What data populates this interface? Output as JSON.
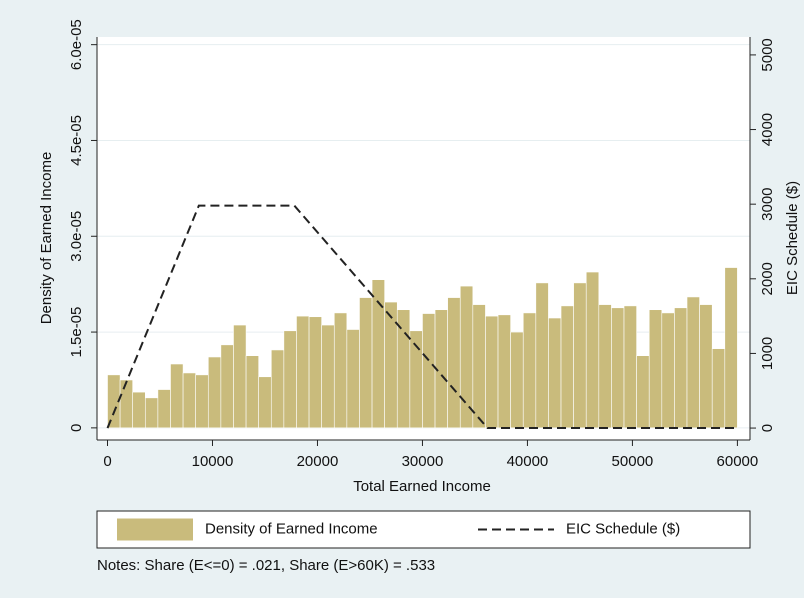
{
  "chart_data": {
    "type": "histogram",
    "x_label": "Total Earned Income",
    "y_label": "Density of Earned Income",
    "y2_label": "EIC Schedule ($)",
    "notes": "Notes: Share (E<=0) = .021, Share (E>60K) = .533",
    "xlim": [
      -1000,
      61200
    ],
    "xticks": [
      0,
      10000,
      20000,
      30000,
      40000,
      50000,
      60000
    ],
    "ylim": [
      -1.9e-06,
      6.12e-05
    ],
    "yticks": [
      0,
      {
        "value": 1.5e-05,
        "label": "1.5e-05"
      },
      {
        "value": 3e-05,
        "label": "3.0e-05"
      },
      {
        "value": 4.5e-05,
        "label": "4.5e-05"
      },
      {
        "value": 6e-05,
        "label": "6.0e-05"
      }
    ],
    "y2lim": [
      -160,
      5240
    ],
    "y2ticks": [
      0,
      1000,
      2000,
      3000,
      4000,
      5000
    ],
    "grid": true,
    "series": [
      {
        "name": "Density of Earned Income",
        "color": "#c9bb7c",
        "bins": [
          0,
          1200,
          2400,
          3600,
          4800,
          6000,
          7200,
          8400,
          9600,
          10800,
          12000,
          13200,
          14400,
          15600,
          16800,
          18000,
          19200,
          20400,
          21600,
          22800,
          24000,
          25200,
          26400,
          27600,
          28800,
          30000,
          31200,
          32400,
          33600,
          34800,
          36000,
          37200,
          38400,
          39600,
          40800,
          42000,
          43200,
          44400,
          45600,
          46800,
          48000,
          49200,
          50400,
          51600,
          52800,
          54000,
          55200,
          56400,
          57600,
          58800,
          60000
        ],
        "values": [
          8.3e-06,
          7.5e-06,
          5.6e-06,
          4.7e-06,
          6e-06,
          1e-05,
          8.6e-06,
          8.3e-06,
          1.11e-05,
          1.3e-05,
          1.61e-05,
          1.13e-05,
          8e-06,
          1.22e-05,
          1.52e-05,
          1.75e-05,
          1.74e-05,
          1.61e-05,
          1.8e-05,
          1.54e-05,
          2.04e-05,
          2.32e-05,
          1.97e-05,
          1.85e-05,
          1.52e-05,
          1.79e-05,
          1.85e-05,
          2.04e-05,
          2.22e-05,
          1.93e-05,
          1.75e-05,
          1.77e-05,
          1.5e-05,
          1.8e-05,
          2.27e-05,
          1.72e-05,
          1.91e-05,
          2.27e-05,
          2.44e-05,
          1.93e-05,
          1.88e-05,
          1.91e-05,
          1.13e-05,
          1.85e-05,
          1.8e-05,
          1.88e-05,
          2.05e-05,
          1.93e-05,
          1.24e-05,
          2.51e-05
        ]
      },
      {
        "name": "EIC Schedule ($)",
        "color": "#222222",
        "axis": "y2",
        "dashed": true,
        "x": [
          0,
          8700,
          17800,
          36200,
          60000
        ],
        "values": [
          0,
          2980,
          2980,
          0,
          0
        ]
      }
    ]
  }
}
